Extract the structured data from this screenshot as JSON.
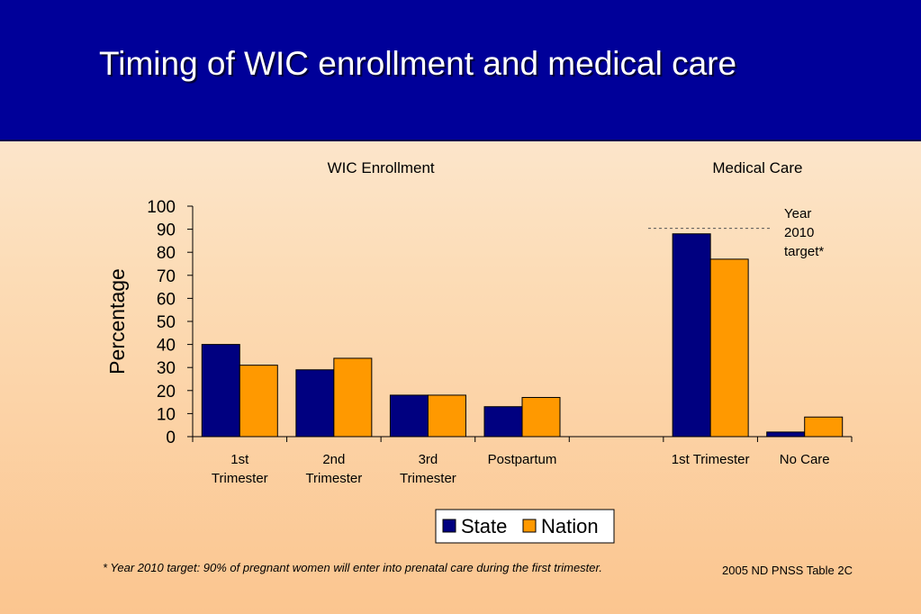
{
  "slide": {
    "title": "Timing of WIC enrollment and medical care",
    "footnote": "*  Year 2010 target: 90% of pregnant women will enter into prenatal care during the first trimester.",
    "source": "2005 ND PNSS Table 2C"
  },
  "chart_data": {
    "type": "bar",
    "ylabel": "Percentage",
    "ylim": [
      0,
      100
    ],
    "yticks": [
      0,
      10,
      20,
      30,
      40,
      50,
      60,
      70,
      80,
      90,
      100
    ],
    "groups": [
      {
        "label": "WIC Enrollment",
        "categories": [
          0,
          1,
          2,
          3
        ]
      },
      {
        "label": "Medical Care",
        "categories": [
          5,
          6
        ]
      }
    ],
    "categories": [
      [
        "1st",
        "Trimester"
      ],
      [
        "2nd",
        "Trimester"
      ],
      [
        "3rd",
        "Trimester"
      ],
      [
        "Postpartum"
      ],
      [],
      [
        "1st Trimester"
      ],
      [
        "No Care"
      ]
    ],
    "series": [
      {
        "name": "State",
        "color": "#000080",
        "values": [
          40,
          29,
          18,
          13,
          null,
          88,
          2
        ]
      },
      {
        "name": "Nation",
        "color": "#ff9900",
        "values": [
          31,
          34,
          18,
          17,
          null,
          77,
          8.5
        ]
      }
    ],
    "target": {
      "value": 90,
      "label_lines": [
        "Year",
        "2010",
        "target*"
      ]
    },
    "legend": "bottom-center"
  }
}
